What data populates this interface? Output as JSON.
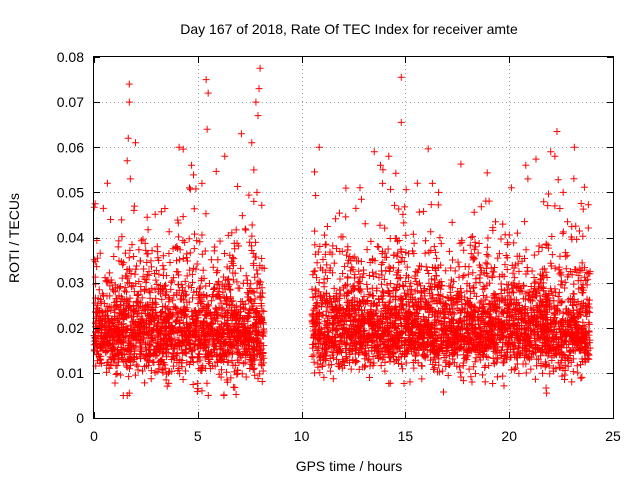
{
  "chart_data": {
    "type": "scatter",
    "title": "Day 167 of 2018, Rate Of TEC Index for receiver amte",
    "xlabel": "GPS time / hours",
    "ylabel": "ROTI / TECUs",
    "xlim": [
      0,
      25
    ],
    "ylim": [
      0,
      0.08
    ],
    "x_ticks": [
      0,
      5,
      10,
      15,
      20,
      25
    ],
    "x_tick_labels": [
      "0",
      "5",
      "10",
      "15",
      "20",
      "25"
    ],
    "y_ticks": [
      0,
      0.01,
      0.02,
      0.03,
      0.04,
      0.05,
      0.06,
      0.07,
      0.08
    ],
    "y_tick_labels": [
      "0",
      "0.01",
      "0.02",
      "0.03",
      "0.04",
      "0.05",
      "0.06",
      "0.07",
      "0.08"
    ],
    "grid": true,
    "marker": "+",
    "marker_color": "#ff0000",
    "series": [
      {
        "name": "ROTI",
        "segments": [
          {
            "x_start": 0.0,
            "x_end": 8.2,
            "typical_min": 0.01,
            "typical_max": 0.03,
            "center": 0.018
          },
          {
            "x_start": 10.5,
            "x_end": 23.9,
            "typical_min": 0.01,
            "typical_max": 0.03,
            "center": 0.019
          }
        ],
        "notable_points": [
          {
            "x": 1.7,
            "y": 0.074
          },
          {
            "x": 1.7,
            "y": 0.07
          },
          {
            "x": 1.65,
            "y": 0.062
          },
          {
            "x": 1.6,
            "y": 0.057
          },
          {
            "x": 1.75,
            "y": 0.053
          },
          {
            "x": 2.0,
            "y": 0.061
          },
          {
            "x": 4.1,
            "y": 0.06
          },
          {
            "x": 4.7,
            "y": 0.056
          },
          {
            "x": 4.6,
            "y": 0.051
          },
          {
            "x": 5.4,
            "y": 0.075
          },
          {
            "x": 5.5,
            "y": 0.072
          },
          {
            "x": 5.45,
            "y": 0.064
          },
          {
            "x": 5.2,
            "y": 0.052
          },
          {
            "x": 6.3,
            "y": 0.058
          },
          {
            "x": 7.1,
            "y": 0.063
          },
          {
            "x": 7.6,
            "y": 0.061
          },
          {
            "x": 7.7,
            "y": 0.055
          },
          {
            "x": 7.8,
            "y": 0.07
          },
          {
            "x": 7.9,
            "y": 0.067
          },
          {
            "x": 8.0,
            "y": 0.0775
          },
          {
            "x": 7.95,
            "y": 0.073
          },
          {
            "x": 7.85,
            "y": 0.05
          },
          {
            "x": 7.7,
            "y": 0.048
          },
          {
            "x": 13.5,
            "y": 0.059
          },
          {
            "x": 13.8,
            "y": 0.056
          },
          {
            "x": 14.2,
            "y": 0.058
          },
          {
            "x": 13.9,
            "y": 0.052
          },
          {
            "x": 14.8,
            "y": 0.0755
          },
          {
            "x": 14.8,
            "y": 0.0655
          },
          {
            "x": 16.3,
            "y": 0.052
          },
          {
            "x": 16.6,
            "y": 0.05
          },
          {
            "x": 20.8,
            "y": 0.056
          },
          {
            "x": 20.9,
            "y": 0.053
          },
          {
            "x": 22.0,
            "y": 0.059
          },
          {
            "x": 22.2,
            "y": 0.058
          },
          {
            "x": 22.3,
            "y": 0.0635
          },
          {
            "x": 22.6,
            "y": 0.05
          },
          {
            "x": 22.2,
            "y": 0.047
          },
          {
            "x": 1.6,
            "y": 0.005
          },
          {
            "x": 1.7,
            "y": 0.0055
          },
          {
            "x": 5.0,
            "y": 0.0065
          },
          {
            "x": 21.8,
            "y": 0.0055
          },
          {
            "x": 23.5,
            "y": 0.009
          },
          {
            "x": 23.3,
            "y": 0.01
          }
        ]
      }
    ]
  }
}
